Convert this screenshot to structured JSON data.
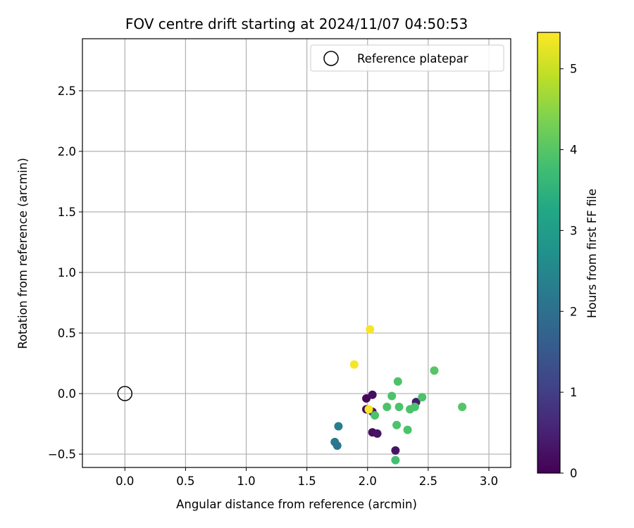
{
  "chart_data": {
    "type": "scatter",
    "title": "FOV centre drift starting at 2024/11/07 04:50:53",
    "xlabel": "Angular distance from reference (arcmin)",
    "ylabel": "Rotation from reference (arcmin)",
    "xlim": [
      -0.35,
      3.18
    ],
    "ylim": [
      -0.61,
      2.93
    ],
    "x_ticks": [
      0.0,
      0.5,
      1.0,
      1.5,
      2.0,
      2.5,
      3.0
    ],
    "x_tick_labels": [
      "0.0",
      "0.5",
      "1.0",
      "1.5",
      "2.0",
      "2.5",
      "3.0"
    ],
    "y_ticks": [
      -0.5,
      0.0,
      0.5,
      1.0,
      1.5,
      2.0,
      2.5
    ],
    "y_tick_labels": [
      "−0.5",
      "0.0",
      "0.5",
      "1.0",
      "1.5",
      "2.0",
      "2.5"
    ],
    "grid": true,
    "legend": {
      "position": "top-right",
      "entries": [
        "Reference platepar"
      ]
    },
    "reference_point": {
      "label": "Reference platepar",
      "x": 0.0,
      "y": 0.0
    },
    "colorbar": {
      "label": "Hours from first FF file",
      "colormap": "viridis",
      "range": [
        0,
        5.45
      ],
      "ticks": [
        0,
        1,
        2,
        3,
        4,
        5
      ],
      "tick_labels": [
        "0",
        "1",
        "2",
        "3",
        "4",
        "5"
      ]
    },
    "points": [
      {
        "x": 1.99,
        "y": -0.04,
        "hours": 0.1
      },
      {
        "x": 2.04,
        "y": -0.01,
        "hours": 0.2
      },
      {
        "x": 1.99,
        "y": -0.13,
        "hours": 0.1
      },
      {
        "x": 2.04,
        "y": -0.15,
        "hours": 0.3
      },
      {
        "x": 2.04,
        "y": -0.32,
        "hours": 0.2
      },
      {
        "x": 2.08,
        "y": -0.33,
        "hours": 0.3
      },
      {
        "x": 2.23,
        "y": -0.47,
        "hours": 0.3
      },
      {
        "x": 2.4,
        "y": -0.07,
        "hours": 0.4
      },
      {
        "x": 1.76,
        "y": -0.27,
        "hours": 2.3
      },
      {
        "x": 1.73,
        "y": -0.4,
        "hours": 2.2
      },
      {
        "x": 1.75,
        "y": -0.43,
        "hours": 2.1
      },
      {
        "x": 2.23,
        "y": -0.55,
        "hours": 3.8
      },
      {
        "x": 2.25,
        "y": 0.1,
        "hours": 3.9
      },
      {
        "x": 2.2,
        "y": -0.02,
        "hours": 3.9
      },
      {
        "x": 2.45,
        "y": -0.03,
        "hours": 3.9
      },
      {
        "x": 2.55,
        "y": 0.19,
        "hours": 4.0
      },
      {
        "x": 2.26,
        "y": -0.11,
        "hours": 3.9
      },
      {
        "x": 2.16,
        "y": -0.11,
        "hours": 3.9
      },
      {
        "x": 2.06,
        "y": -0.18,
        "hours": 3.9
      },
      {
        "x": 2.35,
        "y": -0.13,
        "hours": 3.9
      },
      {
        "x": 2.39,
        "y": -0.11,
        "hours": 3.9
      },
      {
        "x": 2.24,
        "y": -0.26,
        "hours": 3.9
      },
      {
        "x": 2.33,
        "y": -0.3,
        "hours": 3.9
      },
      {
        "x": 2.78,
        "y": -0.11,
        "hours": 4.0
      },
      {
        "x": 2.02,
        "y": 0.53,
        "hours": 5.4
      },
      {
        "x": 1.89,
        "y": 0.24,
        "hours": 5.4
      },
      {
        "x": 2.01,
        "y": -0.13,
        "hours": 5.4
      }
    ]
  }
}
